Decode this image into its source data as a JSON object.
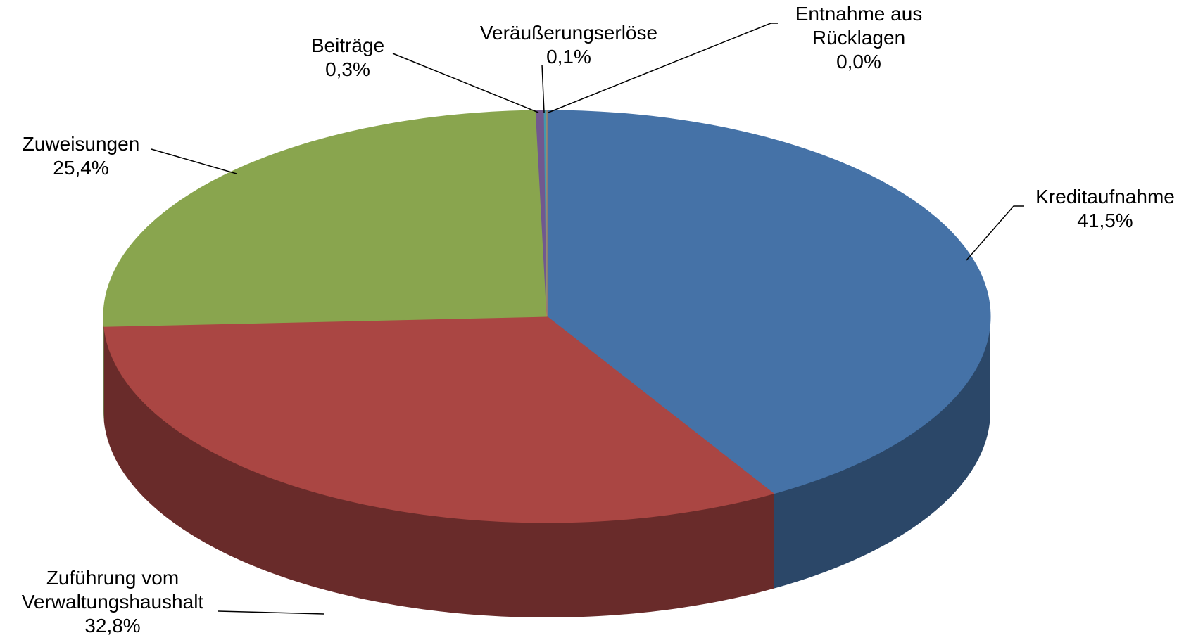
{
  "chart_data": {
    "type": "pie",
    "categories": [
      "Kreditaufnahme",
      "Zuführung vom Verwaltungshaushalt",
      "Zuweisungen",
      "Beiträge",
      "Veräußerungserlöse",
      "Entnahme aus Rücklagen"
    ],
    "values": [
      41.5,
      32.8,
      25.4,
      0.3,
      0.1,
      0.0
    ],
    "value_labels": [
      "41,5%",
      "32,8%",
      "25,4%",
      "0,3%",
      "0,1%",
      "0,0%"
    ],
    "colors": [
      "#4572a7",
      "#aa4643",
      "#89a54e",
      "#71588f",
      "#4198af",
      "#db843d"
    ]
  }
}
